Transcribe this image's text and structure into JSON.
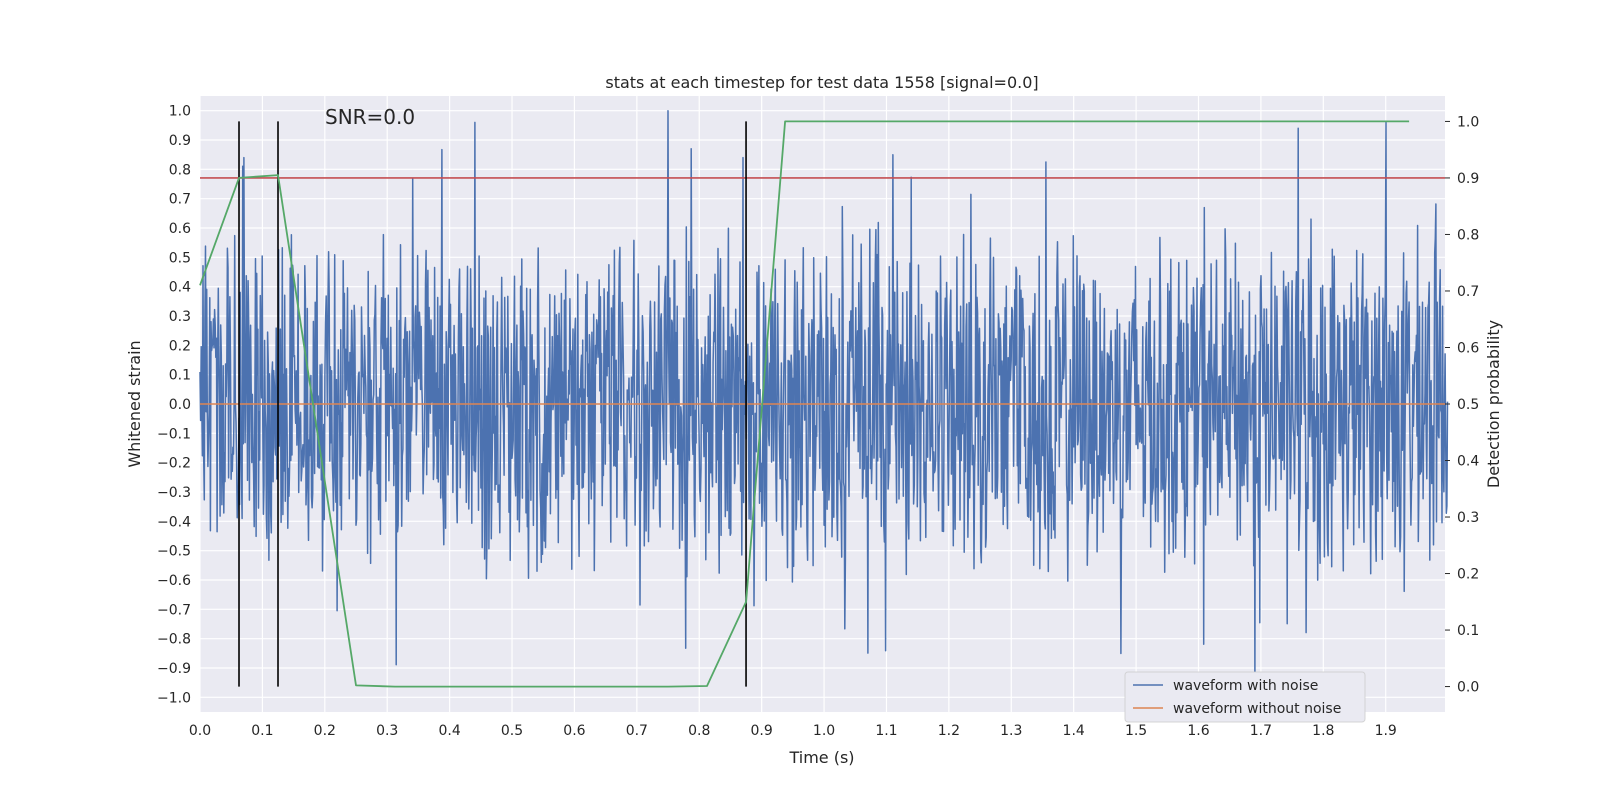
{
  "chart_data": {
    "type": "line",
    "title": "stats at each timestep for test data 1558 [signal=0.0]",
    "annotation": "SNR=0.0",
    "xlabel": "Time (s)",
    "ylabel": "Whitened strain",
    "y2label": "Detection probability",
    "xlim": [
      0.0,
      1.995
    ],
    "ylim": [
      -1.05,
      1.05
    ],
    "y2lim": [
      -0.045,
      1.045
    ],
    "x_ticks": [
      "0.0",
      "0.1",
      "0.2",
      "0.3",
      "0.4",
      "0.5",
      "0.6",
      "0.7",
      "0.8",
      "0.9",
      "1.0",
      "1.1",
      "1.2",
      "1.3",
      "1.4",
      "1.5",
      "1.6",
      "1.7",
      "1.8",
      "1.9"
    ],
    "y_ticks": [
      "1.0",
      "0.9",
      "0.8",
      "0.7",
      "0.6",
      "0.5",
      "0.4",
      "0.3",
      "0.2",
      "0.1",
      "0.0",
      "−0.1",
      "−0.2",
      "−0.3",
      "−0.4",
      "−0.5",
      "−0.6",
      "−0.7",
      "−0.8",
      "−0.9",
      "−1.0"
    ],
    "y2_ticks": [
      "1.0",
      "0.9",
      "0.8",
      "0.7",
      "0.6",
      "0.5",
      "0.4",
      "0.3",
      "0.2",
      "0.1",
      "0.0"
    ],
    "grid": true,
    "legend_position": "lower right",
    "series": [
      {
        "name": "waveform with noise",
        "color": "#4c72b0",
        "axis": "left",
        "description": "dense whitened noise, approx. uniform within [-0.6, 0.6] with spikes up to ±1.0",
        "peaks": [
          [
            0.07,
            0.84
          ],
          [
            0.44,
            0.96
          ],
          [
            0.75,
            1.0
          ],
          [
            0.87,
            0.84
          ],
          [
            1.11,
            0.85
          ],
          [
            1.69,
            -0.95
          ],
          [
            1.76,
            0.94
          ],
          [
            1.9,
            0.96
          ]
        ]
      },
      {
        "name": "waveform without noise",
        "color": "#dd8452",
        "axis": "left",
        "x": [
          0.0,
          1.995
        ],
        "y": [
          0.0,
          0.0
        ]
      },
      {
        "name": "",
        "color": "#55a868",
        "axis": "right",
        "x": [
          0.0,
          0.0625,
          0.125,
          0.25,
          0.3125,
          0.75,
          0.8125,
          0.875,
          0.9375,
          1.0,
          1.9375
        ],
        "y": [
          0.71,
          0.9,
          0.905,
          0.002,
          0.0,
          0.0,
          0.001,
          0.15,
          1.0,
          1.0,
          1.0
        ]
      }
    ],
    "threshold": {
      "axis": "right",
      "value": 0.9,
      "color": "#c44e52"
    },
    "vlines": {
      "x": [
        0.0625,
        0.125,
        0.875
      ],
      "y2_range": [
        0.0,
        1.0
      ],
      "color": "#000000"
    }
  }
}
